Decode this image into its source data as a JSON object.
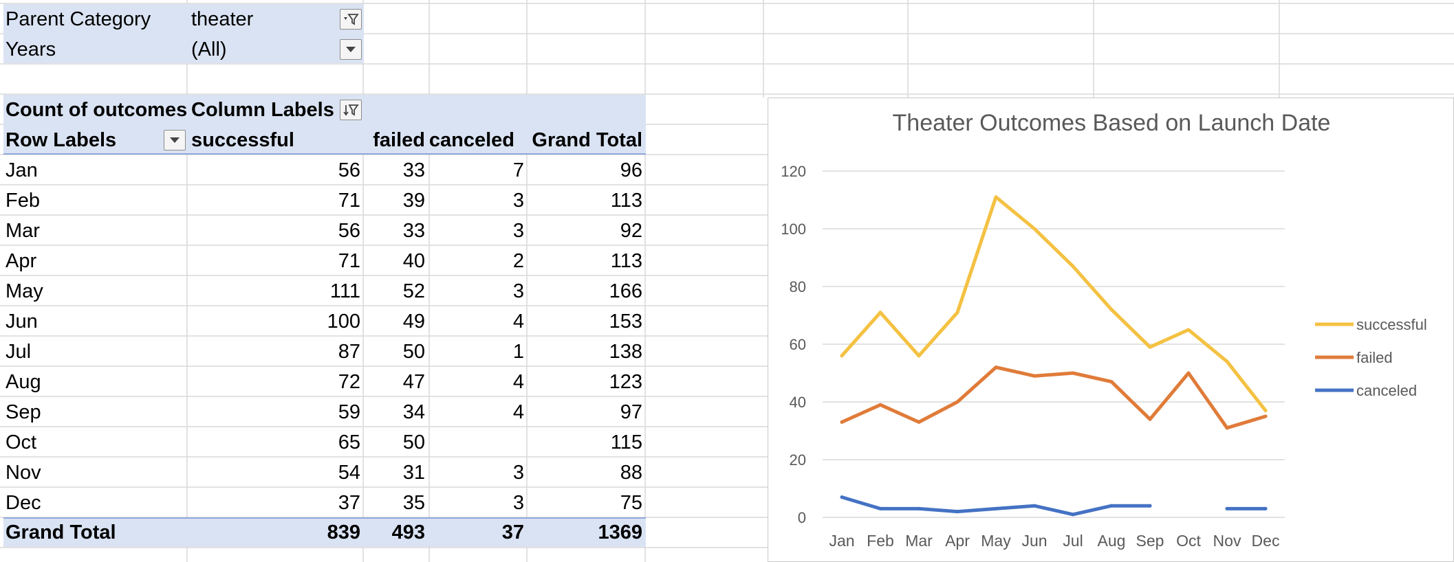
{
  "filters": [
    {
      "label": "Parent Category",
      "value": "theater",
      "icon": "filter-applied-icon"
    },
    {
      "label": "Years",
      "value": "(All)",
      "icon": "dropdown-arrow-icon"
    }
  ],
  "pivot": {
    "corner_label": "Count of outcomes",
    "column_labels": "Column Labels",
    "row_labels": "Row Labels",
    "headers": [
      "successful",
      "failed",
      "canceled",
      "Grand Total"
    ],
    "rows": [
      {
        "label": "Jan",
        "values": [
          "56",
          "33",
          "7",
          "96"
        ]
      },
      {
        "label": "Feb",
        "values": [
          "71",
          "39",
          "3",
          "113"
        ]
      },
      {
        "label": "Mar",
        "values": [
          "56",
          "33",
          "3",
          "92"
        ]
      },
      {
        "label": "Apr",
        "values": [
          "71",
          "40",
          "2",
          "113"
        ]
      },
      {
        "label": "May",
        "values": [
          "111",
          "52",
          "3",
          "166"
        ]
      },
      {
        "label": "Jun",
        "values": [
          "100",
          "49",
          "4",
          "153"
        ]
      },
      {
        "label": "Jul",
        "values": [
          "87",
          "50",
          "1",
          "138"
        ]
      },
      {
        "label": "Aug",
        "values": [
          "72",
          "47",
          "4",
          "123"
        ]
      },
      {
        "label": "Sep",
        "values": [
          "59",
          "34",
          "4",
          "97"
        ]
      },
      {
        "label": "Oct",
        "values": [
          "65",
          "50",
          "",
          "115"
        ]
      },
      {
        "label": "Nov",
        "values": [
          "54",
          "31",
          "3",
          "88"
        ]
      },
      {
        "label": "Dec",
        "values": [
          "37",
          "35",
          "3",
          "75"
        ]
      }
    ],
    "grand_total": {
      "label": "Grand Total",
      "values": [
        "839",
        "493",
        "37",
        "1369"
      ]
    }
  },
  "chart_data": {
    "type": "line",
    "title": "Theater Outcomes Based on Launch Date",
    "categories": [
      "Jan",
      "Feb",
      "Mar",
      "Apr",
      "May",
      "Jun",
      "Jul",
      "Aug",
      "Sep",
      "Oct",
      "Nov",
      "Dec"
    ],
    "series": [
      {
        "name": "successful",
        "color": "#f4c142",
        "values": [
          56,
          71,
          56,
          71,
          111,
          100,
          87,
          72,
          59,
          65,
          54,
          37
        ]
      },
      {
        "name": "failed",
        "color": "#e07b39",
        "values": [
          33,
          39,
          33,
          40,
          52,
          49,
          50,
          47,
          34,
          50,
          31,
          35
        ]
      },
      {
        "name": "canceled",
        "color": "#4472c4",
        "values": [
          7,
          3,
          3,
          2,
          3,
          4,
          1,
          4,
          4,
          null,
          3,
          3
        ]
      }
    ],
    "ylim": [
      0,
      120
    ],
    "yticks": [
      "0",
      "20",
      "40",
      "60",
      "80",
      "100",
      "120"
    ],
    "grid": true,
    "legend": "right",
    "xlabel": "",
    "ylabel": ""
  },
  "colors": {
    "header_band": "#dae3f3",
    "grid": "#d4d4d4"
  }
}
